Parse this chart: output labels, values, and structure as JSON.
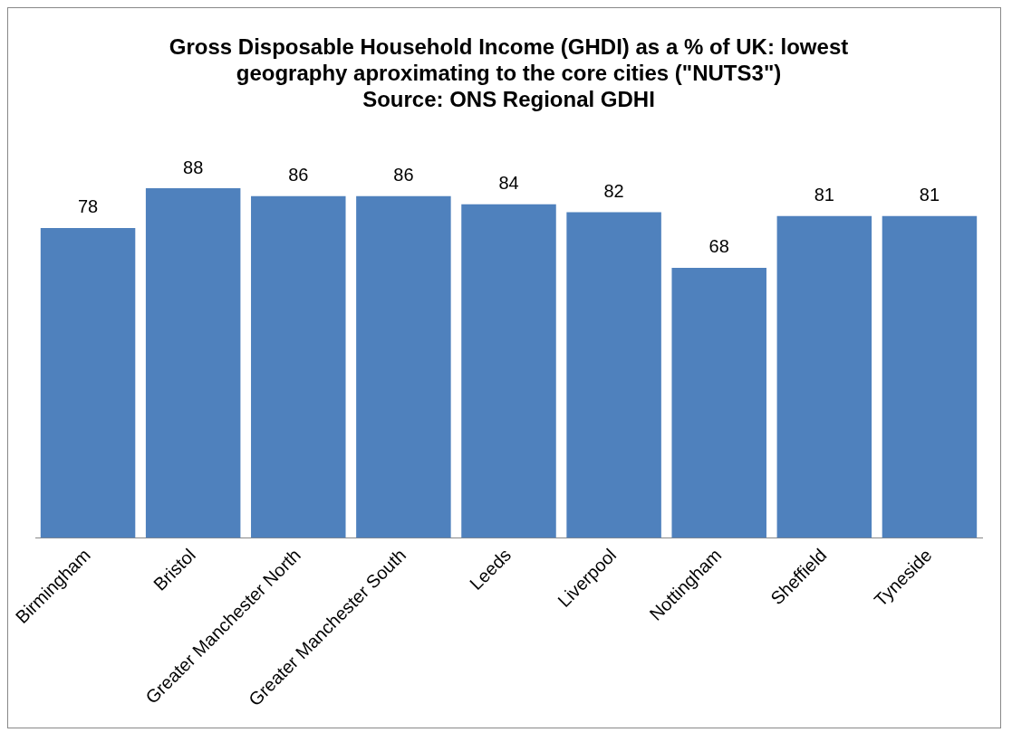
{
  "chart_data": {
    "type": "bar",
    "title": "Gross Disposable Household Income (GHDI) as a % of UK: lowest\ngeography aproximating to the core cities (\"NUTS3\")",
    "annotations": [
      "Source: ONS Regional GDHI"
    ],
    "categories": [
      "Birmingham",
      "Bristol",
      "Greater Manchester North",
      "Greater Manchester South",
      "Leeds",
      "Liverpool",
      "Nottingham",
      "Sheffield",
      "Tyneside"
    ],
    "values": [
      78,
      88,
      86,
      86,
      84,
      82,
      68,
      81,
      81
    ],
    "color": "#4f81bd",
    "data_labels": true
  }
}
